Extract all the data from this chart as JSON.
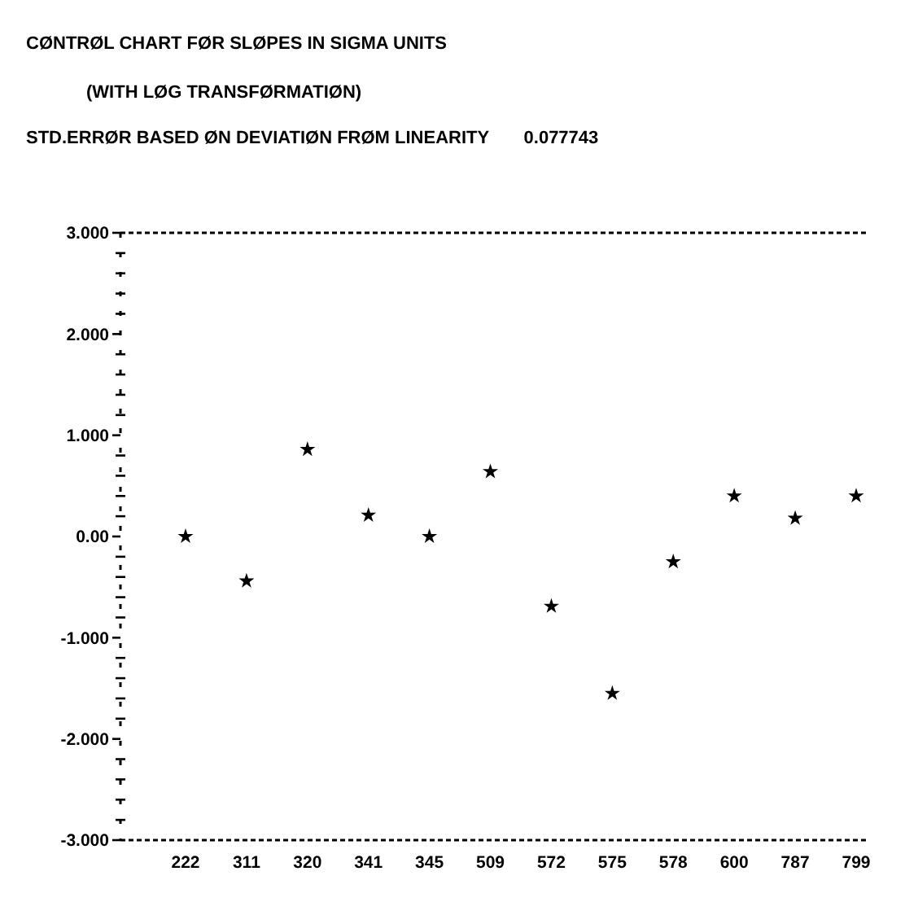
{
  "chart_data": {
    "type": "scatter",
    "title": "CØNTRØL CHART FØR SLØPES IN SIGMA UNITS",
    "subtitle": "(WITH LØG TRANSFØRMATIØN)",
    "annotations": [
      "STD.ERRØR BASED ØN DEVIATIØN FRØM LINEARITY       0.077743"
    ],
    "categories": [
      "222",
      "311",
      "320",
      "341",
      "345",
      "509",
      "572",
      "575",
      "578",
      "600",
      "787",
      "799"
    ],
    "values": [
      0,
      -0.44,
      0.86,
      0.21,
      0,
      0.64,
      -0.69,
      -1.55,
      -0.25,
      0.4,
      0.18,
      0.4
    ],
    "color": "#000000",
    "marker": "star",
    "ylim": [
      -3,
      3
    ],
    "yticks": [
      {
        "value": -3,
        "label": "-3.000"
      },
      {
        "value": -2.8,
        "label": null
      },
      {
        "value": -2.6,
        "label": null
      },
      {
        "value": -2.4,
        "label": null
      },
      {
        "value": -2.2,
        "label": null
      },
      {
        "value": -2,
        "label": "-2.000"
      },
      {
        "value": -1.8,
        "label": null
      },
      {
        "value": -1.6,
        "label": null
      },
      {
        "value": -1.4,
        "label": null
      },
      {
        "value": -1.2,
        "label": null
      },
      {
        "value": -1,
        "label": "-1.000"
      },
      {
        "value": -0.8,
        "label": null
      },
      {
        "value": -0.6,
        "label": null
      },
      {
        "value": -0.4,
        "label": null
      },
      {
        "value": -0.2,
        "label": null
      },
      {
        "value": 0,
        "label": "0.00"
      },
      {
        "value": 0.2,
        "label": null
      },
      {
        "value": 0.4,
        "label": null
      },
      {
        "value": 0.6,
        "label": null
      },
      {
        "value": 0.8,
        "label": null
      },
      {
        "value": 1,
        "label": "1.000"
      },
      {
        "value": 1.2,
        "label": null
      },
      {
        "value": 1.4,
        "label": null
      },
      {
        "value": 1.6,
        "label": null
      },
      {
        "value": 1.8,
        "label": null
      },
      {
        "value": 2,
        "label": "2.000"
      },
      {
        "value": 2.2,
        "label": null
      },
      {
        "value": 2.4,
        "label": null
      },
      {
        "value": 2.6,
        "label": null
      },
      {
        "value": 2.8,
        "label": null
      },
      {
        "value": 3,
        "label": "3.000"
      }
    ],
    "grid": false
  }
}
